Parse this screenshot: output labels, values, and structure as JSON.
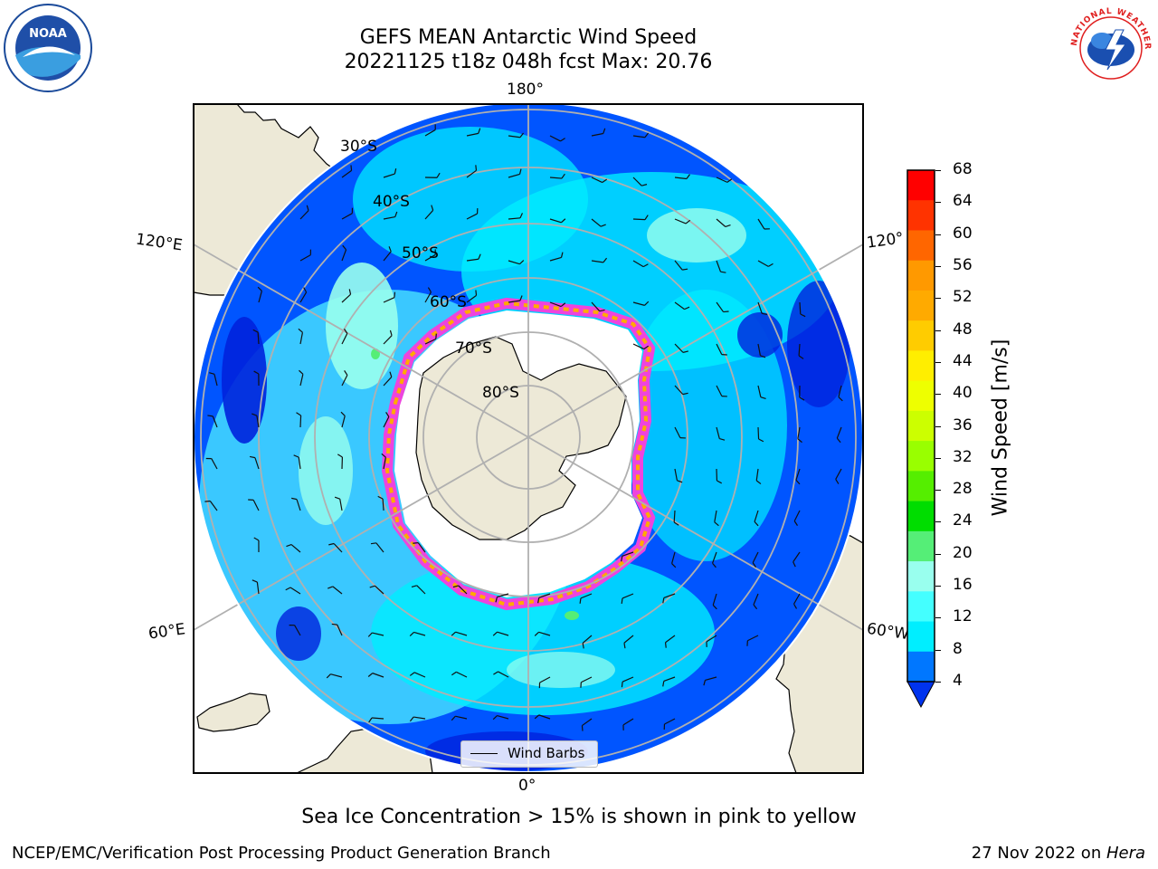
{
  "title": {
    "line1": "GEFS MEAN Antarctic Wind Speed",
    "line2": "20221125 t18z 048h fcst   Max: 20.76"
  },
  "longitude_labels": {
    "top": "180°",
    "bottom": "0°",
    "left_upper": "120°E",
    "left_lower": "60°E",
    "right_upper": "120°",
    "right_lower": "60°W"
  },
  "latitude_labels": [
    "30°S",
    "40°S",
    "50°S",
    "60°S",
    "70°S",
    "80°S"
  ],
  "legend": {
    "wind_barbs": "Wind Barbs"
  },
  "colorbar": {
    "label": "Wind Speed [m/s]",
    "ticks": [
      "68",
      "64",
      "60",
      "56",
      "52",
      "48",
      "44",
      "40",
      "36",
      "32",
      "28",
      "24",
      "20",
      "16",
      "12",
      "8",
      "4"
    ],
    "colors": [
      "#ff0000",
      "#ff3300",
      "#ff6600",
      "#ff9900",
      "#ffaa00",
      "#ffcc00",
      "#ffee00",
      "#eeff00",
      "#ccff00",
      "#99ff00",
      "#55ee00",
      "#00dd00",
      "#55ee77",
      "#99ffee",
      "#44ffff",
      "#00eeff",
      "#0077ff",
      "#0033ee"
    ]
  },
  "note": "Sea Ice Concentration > 15% is shown in pink to yellow",
  "footer": {
    "left": "NCEP/EMC/Verification Post Processing Product Generation Branch",
    "right_prefix": "27 Nov 2022 on ",
    "right_host": "Hera"
  },
  "logos": {
    "noaa": "NOAA",
    "nws": "NATIONAL WEATHER SERVICE"
  }
}
